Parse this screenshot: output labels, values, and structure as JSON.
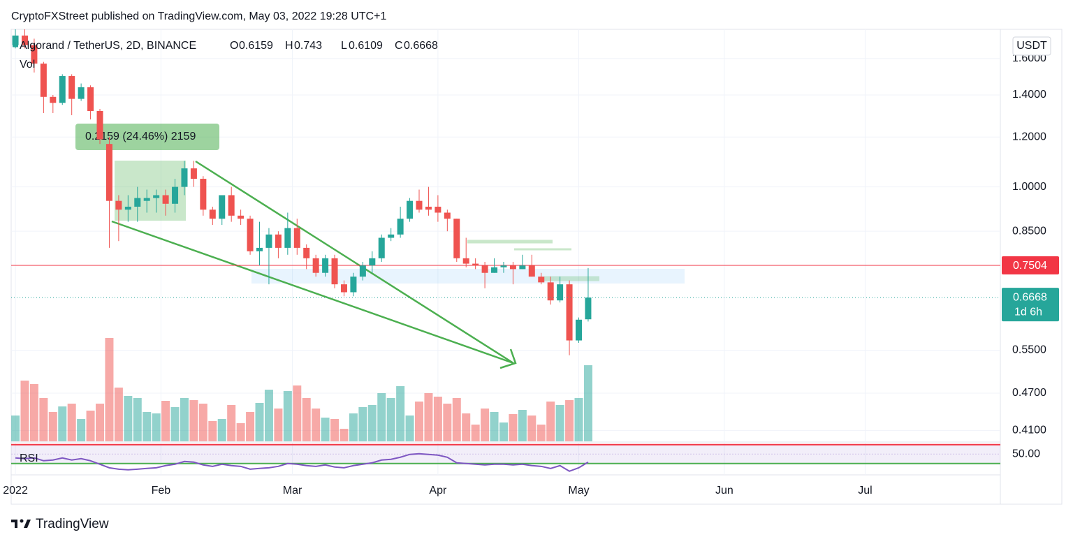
{
  "header": {
    "published": "CryptoFXStreet published on TradingView.com, May 03, 2022 19:28 UTC+1",
    "symbol": "Algorand / TetherUS, 2D, BINANCE",
    "open_label": "O",
    "high_label": "H",
    "low_label": "L",
    "close_label": "C",
    "volume_label": "Vol",
    "rsi_label": "RSI",
    "currency": "USDT",
    "measure": "0.2159 (24.46%) 2159",
    "footer": "TradingView"
  },
  "chart_data": {
    "type": "candlestick",
    "log_scale": true,
    "grid": true,
    "up_color": "#26a69a",
    "down_color": "#ef5350",
    "rsi_color": "#7e57c2",
    "x": [
      0,
      2,
      4,
      6,
      8,
      10,
      12,
      14,
      16,
      18,
      20,
      22,
      24,
      26,
      28,
      30,
      32,
      34,
      36,
      38,
      40,
      42,
      44,
      46,
      48,
      50,
      52,
      54,
      56,
      58,
      60,
      62,
      64,
      66,
      68,
      70,
      72,
      74,
      76,
      78,
      80,
      82,
      84,
      86,
      88,
      90,
      92,
      94,
      96,
      98,
      100,
      102,
      104,
      106,
      108,
      110,
      112,
      114,
      116,
      118,
      120,
      122
    ],
    "open": [
      1.68,
      1.74,
      1.68,
      1.57,
      1.39,
      1.36,
      1.5,
      1.38,
      1.44,
      1.32,
      1.17,
      0.95,
      0.92,
      0.93,
      0.95,
      0.96,
      0.97,
      0.94,
      1.0,
      1.07,
      1.03,
      0.92,
      0.89,
      0.97,
      0.9,
      0.89,
      0.79,
      0.8,
      0.84,
      0.8,
      0.86,
      0.8,
      0.77,
      0.73,
      0.77,
      0.7,
      0.68,
      0.72,
      0.75,
      0.77,
      0.83,
      0.84,
      0.89,
      0.95,
      0.93,
      0.93,
      0.91,
      0.89,
      0.77,
      0.755,
      0.75,
      0.73,
      0.745,
      0.75,
      0.74,
      0.75,
      0.72,
      0.705,
      0.66,
      0.7,
      0.57,
      0.6159
    ],
    "high": [
      1.78,
      1.78,
      1.72,
      1.58,
      1.4,
      1.51,
      1.51,
      1.46,
      1.45,
      1.33,
      1.2,
      0.97,
      0.97,
      1.0,
      0.99,
      0.99,
      0.99,
      1.03,
      1.1,
      1.1,
      1.04,
      0.93,
      0.97,
      1.0,
      0.92,
      0.9,
      0.88,
      0.86,
      0.85,
      0.91,
      0.89,
      0.81,
      0.78,
      0.78,
      0.78,
      0.71,
      0.73,
      0.76,
      0.79,
      0.84,
      0.86,
      0.93,
      0.96,
      0.99,
      1.0,
      0.97,
      0.92,
      0.89,
      0.83,
      0.77,
      0.76,
      0.77,
      0.76,
      0.76,
      0.78,
      0.78,
      0.73,
      0.72,
      0.72,
      0.71,
      0.62,
      0.743
    ],
    "low": [
      1.66,
      1.66,
      1.52,
      1.31,
      1.31,
      1.35,
      1.3,
      1.37,
      1.28,
      1.17,
      0.8,
      0.82,
      0.88,
      0.88,
      0.91,
      0.91,
      0.9,
      0.91,
      0.97,
      1.0,
      0.9,
      0.87,
      0.87,
      0.88,
      0.87,
      0.78,
      0.75,
      0.7,
      0.77,
      0.78,
      0.78,
      0.74,
      0.72,
      0.72,
      0.69,
      0.67,
      0.67,
      0.71,
      0.73,
      0.76,
      0.82,
      0.83,
      0.88,
      0.91,
      0.9,
      0.88,
      0.85,
      0.76,
      0.745,
      0.74,
      0.69,
      0.73,
      0.73,
      0.7,
      0.74,
      0.72,
      0.7,
      0.65,
      0.655,
      0.54,
      0.565,
      0.6109
    ],
    "close": [
      1.74,
      1.68,
      1.57,
      1.39,
      1.36,
      1.5,
      1.38,
      1.44,
      1.32,
      1.19,
      0.95,
      0.92,
      0.93,
      0.96,
      0.96,
      0.97,
      0.94,
      1.0,
      1.07,
      1.03,
      0.92,
      0.89,
      0.97,
      0.9,
      0.89,
      0.79,
      0.8,
      0.84,
      0.8,
      0.86,
      0.8,
      0.77,
      0.73,
      0.77,
      0.7,
      0.68,
      0.72,
      0.75,
      0.77,
      0.83,
      0.84,
      0.89,
      0.95,
      0.92,
      0.92,
      0.91,
      0.89,
      0.77,
      0.755,
      0.75,
      0.73,
      0.745,
      0.75,
      0.74,
      0.75,
      0.72,
      0.705,
      0.66,
      0.7,
      0.57,
      0.615,
      0.6668
    ],
    "volume": [
      37,
      87,
      82,
      62,
      42,
      50,
      54,
      32,
      44,
      54,
      148,
      77,
      65,
      62,
      42,
      40,
      58,
      49,
      62,
      59,
      54,
      29,
      32,
      52,
      26,
      42,
      55,
      74,
      47,
      72,
      80,
      62,
      47,
      34,
      32,
      18,
      40,
      49,
      52,
      69,
      62,
      79,
      37,
      57,
      69,
      64,
      54,
      62,
      40,
      24,
      47,
      42,
      27,
      39,
      45,
      37,
      24,
      57,
      52,
      59,
      62,
      109
    ],
    "volume_ylim": [
      0,
      590
    ],
    "rsi": [
      41.9,
      40.4,
      41.9,
      35.9,
      37.4,
      41.9,
      37.4,
      40.4,
      35.9,
      28.5,
      21,
      18,
      16.7,
      18,
      19.6,
      21,
      25.6,
      28.5,
      34.4,
      33,
      27,
      24,
      28.5,
      25.6,
      24,
      18,
      19.6,
      21,
      24,
      30,
      28.5,
      25.6,
      24,
      27,
      22.6,
      21,
      25.6,
      28.5,
      31.5,
      37.4,
      38.9,
      43.3,
      49.3,
      50.7,
      49.3,
      47.8,
      43.3,
      31.5,
      30,
      28.5,
      27,
      28.5,
      28.5,
      27,
      28.5,
      25.6,
      24,
      19.6,
      25.6,
      13.7,
      21,
      33
    ],
    "rsi_ylim": [
      6,
      74
    ],
    "rsi_levels": [
      70,
      30
    ],
    "rsi_yticks": [
      {
        "value": 50,
        "label": "50.00"
      }
    ],
    "xlim": [
      -0.9,
      209.8
    ],
    "xticks": [
      {
        "value": 0,
        "label": "2022"
      },
      {
        "value": 31,
        "label": "Feb"
      },
      {
        "value": 59,
        "label": "Mar"
      },
      {
        "value": 90,
        "label": "Apr"
      },
      {
        "value": 120,
        "label": "May"
      },
      {
        "value": 151,
        "label": "Jun"
      },
      {
        "value": 181,
        "label": "Jul"
      }
    ],
    "ylim": [
      0.394,
      1.78
    ],
    "yticks": [
      {
        "value": 1.6,
        "label": "1.6000"
      },
      {
        "value": 1.4,
        "label": "1.4000"
      },
      {
        "value": 1.2,
        "label": "1.2000"
      },
      {
        "value": 1.0,
        "label": "1.0000"
      },
      {
        "value": 0.85,
        "label": "0.8500"
      },
      {
        "value": 0.55,
        "label": "0.5500"
      },
      {
        "value": 0.47,
        "label": "0.4700"
      },
      {
        "value": 0.41,
        "label": "0.4100"
      }
    ],
    "price_lines": [
      {
        "value": 0.7504,
        "color": "#f23645"
      }
    ],
    "countdown": "1d 6h"
  }
}
